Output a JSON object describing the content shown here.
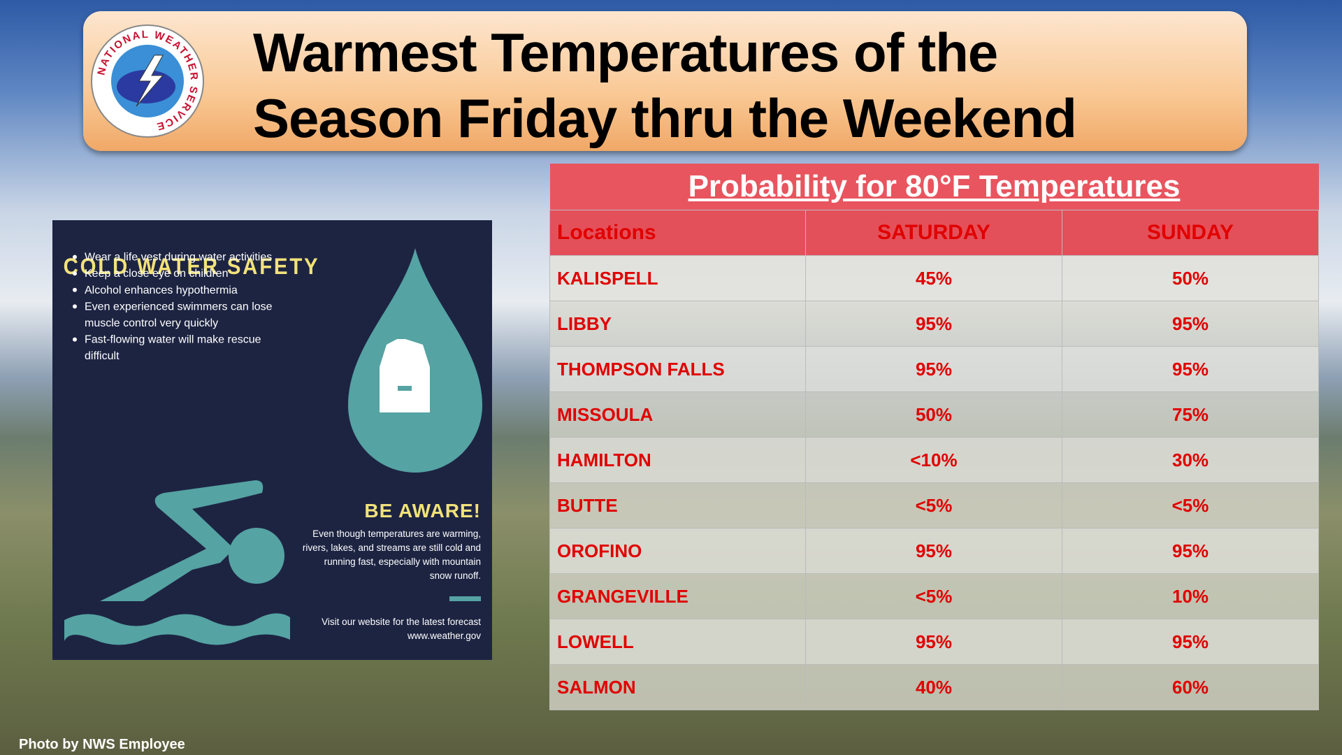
{
  "header": {
    "title_lines": [
      "Warmest Temperatures of the",
      "Season Friday thru the Weekend"
    ],
    "logo_text": "NATIONAL WEATHER SERVICE"
  },
  "table": {
    "title": "Probability for 80°F Temperatures",
    "columns": [
      "Locations",
      "SATURDAY",
      "SUNDAY"
    ],
    "rows": [
      [
        "KALISPELL",
        "45%",
        "50%"
      ],
      [
        "LIBBY",
        "95%",
        "95%"
      ],
      [
        "THOMPSON FALLS",
        "95%",
        "95%"
      ],
      [
        "MISSOULA",
        "50%",
        "75%"
      ],
      [
        "HAMILTON",
        "<10%",
        "30%"
      ],
      [
        "BUTTE",
        "<5%",
        "<5%"
      ],
      [
        "OROFINO",
        "95%",
        "95%"
      ],
      [
        "GRANGEVILLE",
        "<5%",
        "10%"
      ],
      [
        "LOWELL",
        "95%",
        "95%"
      ],
      [
        "SALMON",
        "40%",
        "60%"
      ]
    ]
  },
  "safety_panel": {
    "title": "COLD WATER SAFETY",
    "bullets": [
      [
        "Wear a life vest during water activities"
      ],
      [
        "Keep a close eye on children"
      ],
      [
        "Alcohol  enhances hypothermia"
      ],
      [
        "Even experienced swimmers can lose",
        "muscle control very quickly"
      ],
      [
        "Fast-flowing water will make rescue",
        "difficult"
      ]
    ],
    "aware_heading": "BE AWARE!",
    "aware_lines": [
      "Even though temperatures are warming,",
      "rivers, lakes, and streams are still cold and",
      "running fast, especially with mountain",
      "snow runoff."
    ],
    "footer_lines": [
      "Visit our website for the latest forecast",
      "www.weather.gov"
    ]
  },
  "credit": "Photo by NWS Employee"
}
